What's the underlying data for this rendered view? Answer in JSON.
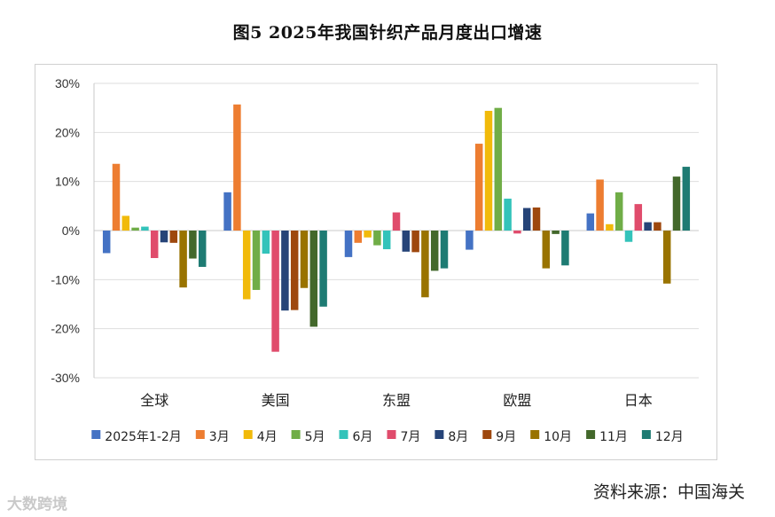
{
  "title": "图5   2025年我国针织产品月度出口增速",
  "source": "资料来源：中国海关",
  "watermark": "大数跨境",
  "chart_data": {
    "type": "bar",
    "title": "图5   2025年我国针织产品月度出口增速",
    "categories": [
      "全球",
      "美国",
      "东盟",
      "欧盟",
      "日本"
    ],
    "ylim": [
      -30,
      30
    ],
    "yticks": [
      -30,
      -20,
      -10,
      0,
      10,
      20,
      30
    ],
    "ytick_labels": [
      "-30%",
      "-20%",
      "-10%",
      "0%",
      "10%",
      "20%",
      "30%"
    ],
    "legend_position": "bottom",
    "series": [
      {
        "name": "2025年1-2月",
        "color": "#4472C4",
        "values": [
          -4.6,
          7.8,
          -5.4,
          -3.9,
          3.5
        ]
      },
      {
        "name": "3月",
        "color": "#ED7D31",
        "values": [
          13.6,
          25.7,
          -2.5,
          17.7,
          10.4
        ]
      },
      {
        "name": "4月",
        "color": "#F1BA0A",
        "values": [
          3.0,
          -14.0,
          -1.4,
          24.4,
          1.3
        ]
      },
      {
        "name": "5月",
        "color": "#70AD47",
        "values": [
          0.6,
          -12.1,
          -3.0,
          25.0,
          7.8
        ]
      },
      {
        "name": "6月",
        "color": "#33C3BA",
        "values": [
          0.8,
          -4.7,
          -3.8,
          6.5,
          -2.3
        ]
      },
      {
        "name": "7月",
        "color": "#E04C6C",
        "values": [
          -5.6,
          -24.7,
          3.7,
          -0.6,
          5.4
        ]
      },
      {
        "name": "8月",
        "color": "#264478",
        "values": [
          -2.4,
          -16.3,
          -4.3,
          4.6,
          1.7
        ]
      },
      {
        "name": "9月",
        "color": "#9E480E",
        "values": [
          -2.5,
          -16.2,
          -4.4,
          4.7,
          1.7
        ]
      },
      {
        "name": "10月",
        "color": "#997300",
        "values": [
          -11.6,
          -11.7,
          -13.6,
          -7.7,
          -10.8
        ]
      },
      {
        "name": "11月",
        "color": "#43682B",
        "values": [
          -5.7,
          -19.6,
          -8.2,
          -0.7,
          11.0
        ]
      },
      {
        "name": "12月",
        "color": "#1E7B73",
        "values": [
          -7.4,
          -15.5,
          -7.7,
          -7.1,
          13.0
        ]
      }
    ]
  }
}
